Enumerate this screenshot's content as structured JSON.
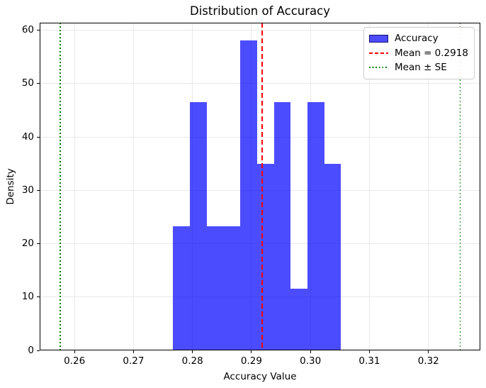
{
  "chart_data": {
    "type": "bar",
    "subtype": "histogram-density",
    "title": "Distribution of Accuracy",
    "xlabel": "Accuracy Value",
    "ylabel": "Density",
    "xlim": [
      0.2541,
      0.3288
    ],
    "ylim": [
      0,
      61.4
    ],
    "grid": true,
    "xticks": [
      {
        "value": 0.26,
        "label": "0.26"
      },
      {
        "value": 0.27,
        "label": "0.27"
      },
      {
        "value": 0.28,
        "label": "0.28"
      },
      {
        "value": 0.29,
        "label": "0.29"
      },
      {
        "value": 0.3,
        "label": "0.30"
      },
      {
        "value": 0.31,
        "label": "0.31"
      },
      {
        "value": 0.32,
        "label": "0.32"
      }
    ],
    "yticks": [
      {
        "value": 0,
        "label": "0"
      },
      {
        "value": 10,
        "label": "10"
      },
      {
        "value": 20,
        "label": "20"
      },
      {
        "value": 30,
        "label": "30"
      },
      {
        "value": 40,
        "label": "40"
      },
      {
        "value": 50,
        "label": "50"
      },
      {
        "value": 60,
        "label": "60"
      }
    ],
    "bins": {
      "start": 0.2767,
      "bin_width": 0.00285,
      "densities": [
        23.3,
        46.5,
        23.3,
        23.3,
        58.1,
        34.9,
        46.5,
        11.6,
        46.5,
        34.9
      ],
      "counts": [
        2,
        4,
        2,
        2,
        5,
        3,
        4,
        1,
        4,
        3
      ],
      "n_samples": 30
    },
    "bar_color": "rgba(0,0,255,0.7)",
    "grid_color": "#e8e8e8",
    "mean_line": {
      "value": 0.2918,
      "color": "#ff0000",
      "style": "dashed"
    },
    "se_lines": {
      "values": [
        0.2576,
        0.3254
      ],
      "color": "#008000",
      "style": "dotted"
    },
    "legend": {
      "position": "upper-right",
      "entries": [
        {
          "label": "Accuracy",
          "swatch": "patch",
          "color": "rgba(0,0,255,0.7)"
        },
        {
          "label": "Mean = 0.2918",
          "swatch": "dashed",
          "color": "#ff0000"
        },
        {
          "label": "Mean ± SE",
          "swatch": "dotted",
          "color": "#008000"
        }
      ]
    }
  }
}
